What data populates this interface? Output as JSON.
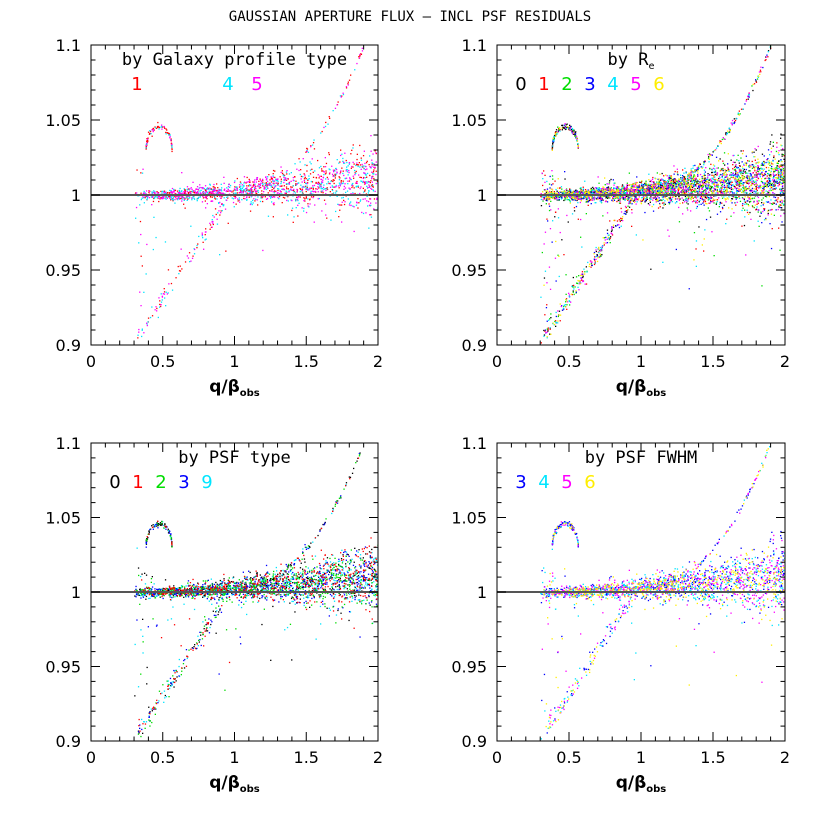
{
  "figure_title": "GAUSSIAN APERTURE FLUX – INCL PSF RESIDUALS",
  "colors": {
    "0": "#000000",
    "1": "#ff0000",
    "2": "#00dd00",
    "3": "#0000ff",
    "4": "#00e5ff",
    "5": "#ff00ff",
    "6": "#ffee00",
    "9": "#00e5ff"
  },
  "chart_data": [
    {
      "type": "scatter",
      "panel_label": "by Galaxy profile type",
      "legend": [
        "1",
        "4",
        "5"
      ],
      "legend_gap_after": [
        "1"
      ],
      "x_label": "q/β",
      "x_label_sub": "obs",
      "xlim": [
        0,
        2
      ],
      "ylim": [
        0.9,
        1.1
      ],
      "x_ticks": [
        "0",
        "0.5",
        "1",
        "1.5",
        "2"
      ],
      "y_ticks": [
        "0.9",
        "0.95",
        "1",
        "1.05",
        "1.1"
      ],
      "reference_line_y": 1,
      "series_draw_order": [
        "1",
        "4",
        "5"
      ]
    },
    {
      "type": "scatter",
      "panel_label": "by R",
      "panel_label_sub": "e",
      "legend": [
        "0",
        "1",
        "2",
        "3",
        "4",
        "5",
        "6"
      ],
      "x_label": "q/β",
      "x_label_sub": "obs",
      "xlim": [
        0,
        2
      ],
      "ylim": [
        0.9,
        1.1
      ],
      "x_ticks": [
        "0",
        "0.5",
        "1",
        "1.5",
        "2"
      ],
      "y_ticks": [
        "0.9",
        "0.95",
        "1",
        "1.05",
        "1.1"
      ],
      "reference_line_y": 1,
      "series_draw_order": [
        "0",
        "1",
        "2",
        "3",
        "4",
        "5",
        "6"
      ]
    },
    {
      "type": "scatter",
      "panel_label": "by PSF type",
      "legend": [
        "0",
        "1",
        "2",
        "3",
        "9"
      ],
      "x_label": "q/β",
      "x_label_sub": "obs",
      "xlim": [
        0,
        2
      ],
      "ylim": [
        0.9,
        1.1
      ],
      "x_ticks": [
        "0",
        "0.5",
        "1",
        "1.5",
        "2"
      ],
      "y_ticks": [
        "0.9",
        "0.95",
        "1",
        "1.05",
        "1.1"
      ],
      "reference_line_y": 1,
      "series_draw_order": [
        "0",
        "9",
        "3",
        "2",
        "1"
      ]
    },
    {
      "type": "scatter",
      "panel_label": "by PSF FWHM",
      "legend": [
        "3",
        "4",
        "5",
        "6"
      ],
      "x_label": "q/β",
      "x_label_sub": "obs",
      "xlim": [
        0,
        2
      ],
      "ylim": [
        0.9,
        1.1
      ],
      "x_ticks": [
        "0",
        "0.5",
        "1",
        "1.5",
        "2"
      ],
      "y_ticks": [
        "0.9",
        "0.95",
        "1",
        "1.05",
        "1.1"
      ],
      "reference_line_y": 1,
      "series_draw_order": [
        "3",
        "4",
        "5",
        "6"
      ]
    }
  ],
  "scatter_model": {
    "x_min": 0.3,
    "x_max": 2.0,
    "core_offset_at_x2": 0.012,
    "core_spread_at_x2": 0.01,
    "low_x_scatter_below": 0.06,
    "low_x_scatter_above": 0.012,
    "arc_peak": [
      0.47,
      1.046
    ],
    "outlier_line_end": [
      1.9,
      1.1
    ]
  }
}
